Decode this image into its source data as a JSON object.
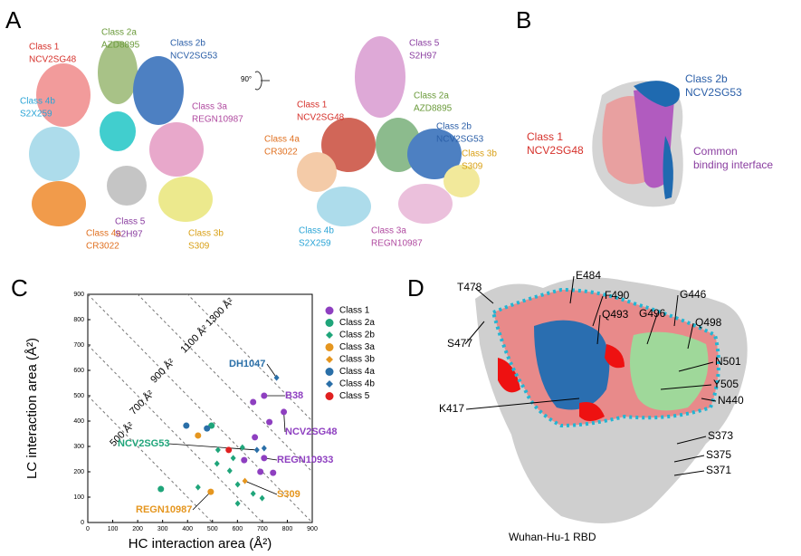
{
  "panels": {
    "A": {
      "letter": "A",
      "rotation": "90°",
      "labels": [
        {
          "lines": [
            "Class 1",
            "NCV2SG48"
          ],
          "color": "#d6312b"
        },
        {
          "lines": [
            "Class 2a",
            "AZD8895"
          ],
          "color": "#6a9a3a"
        },
        {
          "lines": [
            "Class 2b",
            "NCV2SG53"
          ],
          "color": "#2b5fa8"
        },
        {
          "lines": [
            "Class 4b",
            "S2X259"
          ],
          "color": "#2aa4d6"
        },
        {
          "lines": [
            "Class 3a",
            "REGN10987"
          ],
          "color": "#b04aa0"
        },
        {
          "lines": [
            "Class 4a",
            "CR3022"
          ],
          "color": "#e07020"
        },
        {
          "lines": [
            "Class 5",
            "S2H97"
          ],
          "color": "#8a3ea0"
        },
        {
          "lines": [
            "Class 3b",
            "S309"
          ],
          "color": "#d9a016"
        },
        {
          "lines": [
            "Class 5",
            "S2H97"
          ],
          "color": "#8a3ea0"
        },
        {
          "lines": [
            "Class 1",
            "NCV2SG48"
          ],
          "color": "#d6312b"
        },
        {
          "lines": [
            "Class 2a",
            "AZD8895"
          ],
          "color": "#6a9a3a"
        },
        {
          "lines": [
            "Class 2b",
            "NCV2SG53"
          ],
          "color": "#2b5fa8"
        },
        {
          "lines": [
            "Class 4a",
            "CR3022"
          ],
          "color": "#e07020"
        },
        {
          "lines": [
            "Class 3b",
            "S309"
          ],
          "color": "#d9a016"
        },
        {
          "lines": [
            "Class 4b",
            "S2X259"
          ],
          "color": "#2aa4d6"
        },
        {
          "lines": [
            "Class 3a",
            "REGN10987"
          ],
          "color": "#b04aa0"
        }
      ]
    },
    "B": {
      "letter": "B",
      "labels": [
        {
          "lines": [
            "Class 2b",
            "NCV2SG53"
          ],
          "color": "#2b5fa8"
        },
        {
          "lines": [
            "Class 1",
            "NCV2SG48"
          ],
          "color": "#d6312b"
        },
        {
          "lines": [
            "Common",
            "binding interface"
          ],
          "color": "#8a3ea0"
        }
      ]
    },
    "C": {
      "letter": "C"
    },
    "D": {
      "letter": "D",
      "caption": "Wuhan-Hu-1 RBD",
      "labels": [
        "T478",
        "E484",
        "F490",
        "Q493",
        "G496",
        "G446",
        "Q498",
        "S477",
        "N501",
        "Y505",
        "N440",
        "K417",
        "S373",
        "S375",
        "S371"
      ]
    }
  },
  "chart_data": {
    "type": "scatter",
    "xlabel": "HC interaction area (Å²)",
    "ylabel": "LC interaction area (Å²)",
    "xlim": [
      0,
      900
    ],
    "ylim": [
      0,
      900
    ],
    "xticks": [
      0,
      100,
      200,
      300,
      400,
      500,
      600,
      700,
      800,
      900
    ],
    "yticks": [
      0,
      100,
      200,
      300,
      400,
      500,
      600,
      700,
      800,
      900
    ],
    "isolines": [
      {
        "value": 500,
        "label": "500 Å²"
      },
      {
        "value": 700,
        "label": "700 Å²"
      },
      {
        "value": 900,
        "label": "900 Å²"
      },
      {
        "value": 1100,
        "label": "1100 Å²"
      },
      {
        "value": 1300,
        "label": "1300 Å²"
      }
    ],
    "series": [
      {
        "name": "Class 1",
        "color": "#8e3fc0",
        "marker": "circle",
        "x": [
          663,
          707,
          786,
          728,
          670,
          627,
          707,
          692,
          743
        ],
        "values": [
          475,
          500,
          436,
          396,
          336,
          246,
          254,
          200,
          196
        ]
      },
      {
        "name": "Class 2a",
        "color": "#1fa57a",
        "marker": "circle",
        "x": [
          293,
          496
        ],
        "values": [
          132,
          382
        ]
      },
      {
        "name": "Class 2b",
        "color": "#1fa57a",
        "marker": "diamond",
        "x": [
          522,
          583,
          620,
          518,
          569,
          601,
          663,
          699,
          601,
          442
        ],
        "values": [
          286,
          254,
          296,
          232,
          204,
          150,
          114,
          96,
          75,
          139
        ]
      },
      {
        "name": "Class 3a",
        "color": "#e5961f",
        "marker": "circle",
        "x": [
          442,
          493
        ],
        "values": [
          343,
          121
        ]
      },
      {
        "name": "Class 3b",
        "color": "#e5961f",
        "marker": "diamond",
        "x": [
          630
        ],
        "values": [
          164
        ]
      },
      {
        "name": "Class 4a",
        "color": "#2a6fa8",
        "marker": "circle",
        "x": [
          395,
          478
        ],
        "values": [
          382,
          371
        ]
      },
      {
        "name": "Class 4b",
        "color": "#2a6fa8",
        "marker": "diamond",
        "x": [
          757,
          678,
          707
        ],
        "values": [
          571,
          286,
          293
        ]
      },
      {
        "name": "Class 5",
        "color": "#e02020",
        "marker": "circle",
        "x": [
          565
        ],
        "values": [
          286
        ]
      }
    ],
    "annotations": [
      {
        "text": "DH1047",
        "color": "#2a6fa8",
        "x": 757,
        "y": 571
      },
      {
        "text": "B38",
        "color": "#8e3fc0",
        "x": 707,
        "y": 500
      },
      {
        "text": "NCV2SG48",
        "color": "#8e3fc0",
        "x": 786,
        "y": 436
      },
      {
        "text": "NCV2SG53",
        "color": "#1fa57a",
        "x": 678,
        "y": 286
      },
      {
        "text": "REGN10933",
        "color": "#8e3fc0",
        "x": 707,
        "y": 254
      },
      {
        "text": "S309",
        "color": "#e5961f",
        "x": 630,
        "y": 164
      },
      {
        "text": "REGN10987",
        "color": "#e5961f",
        "x": 493,
        "y": 121
      }
    ]
  }
}
